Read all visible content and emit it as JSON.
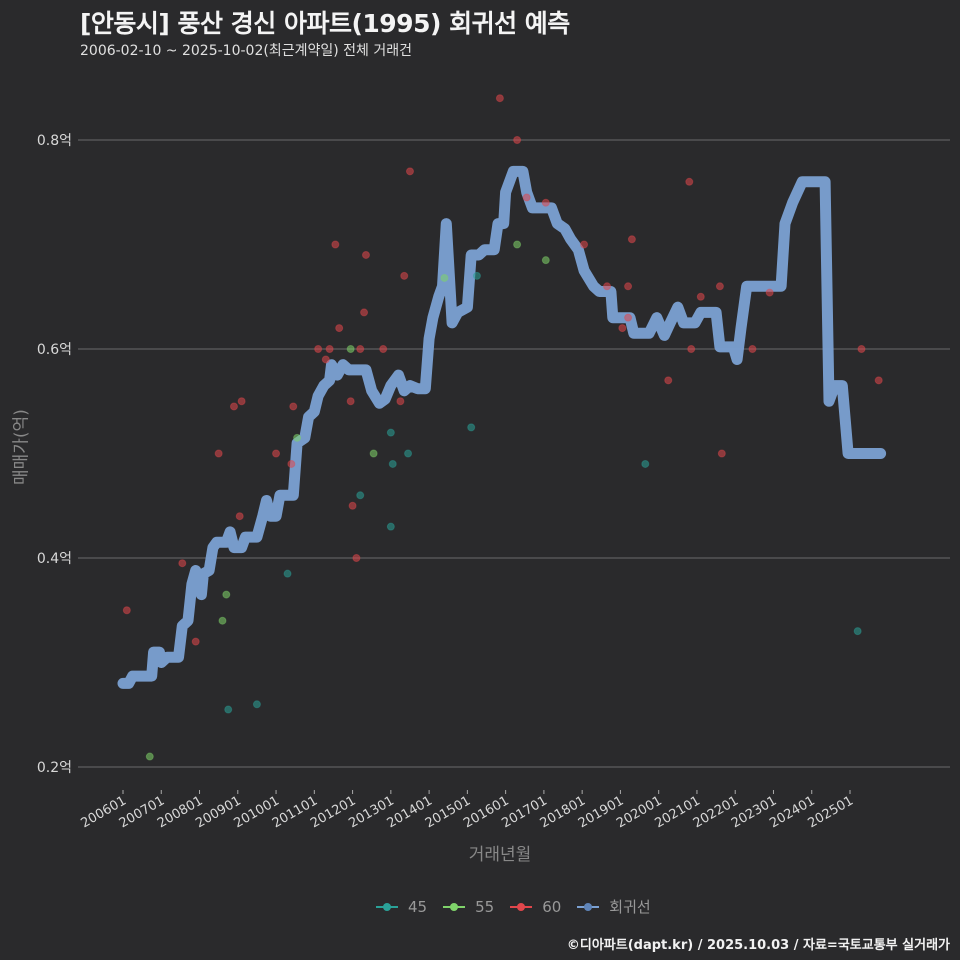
{
  "header": {
    "title": "[안동시] 풍산 경신 아파트(1995) 회귀선 예측",
    "subtitle": "2006-02-10 ~ 2025-10-02(최근계약일) 전체 거래건"
  },
  "axes": {
    "ylabel": "매매가(억)",
    "xlabel": "거래년월"
  },
  "legend": {
    "items": [
      {
        "label": "45",
        "color": "#2aa198"
      },
      {
        "label": "55",
        "color": "#7fd36a"
      },
      {
        "label": "60",
        "color": "#e0474c"
      },
      {
        "label": "회귀선",
        "color": "#7ba1d3"
      }
    ]
  },
  "footer": {
    "credit": "©디아파트(dapt.kr) / 2025.10.03 / 자료=국토교통부 실거래가"
  },
  "colors": {
    "background": "#2a2a2c",
    "grid": "#6b6b6b",
    "regression": "#7ba1d3",
    "s45": "#2aa198",
    "s55": "#7fd36a",
    "s60": "#e0474c"
  },
  "chart_data": {
    "type": "scatter",
    "title": "[안동시] 풍산 경신 아파트(1995) 회귀선 예측",
    "subtitle": "2006-02-10 ~ 2025-10-02(최근계약일) 전체 거래건",
    "xlabel": "거래년월",
    "ylabel": "매매가(억)",
    "ylim": [
      0.18,
      0.86
    ],
    "yticks": [
      0.2,
      0.4,
      0.6,
      0.8
    ],
    "ytick_labels": [
      "0.2억",
      "0.4억",
      "0.6억",
      "0.8억"
    ],
    "xticks": [
      "200601",
      "200701",
      "200801",
      "200901",
      "201001",
      "201101",
      "201201",
      "201301",
      "201401",
      "201501",
      "201601",
      "201701",
      "201801",
      "201901",
      "202001",
      "202101",
      "202201",
      "202301",
      "202401",
      "202501"
    ],
    "grid": true,
    "legend_position": "bottom",
    "series": [
      {
        "name": "45",
        "type": "scatter",
        "points": [
          [
            2008.75,
            0.255
          ],
          [
            2009.5,
            0.26
          ],
          [
            2010.3,
            0.385
          ],
          [
            2012.2,
            0.46
          ],
          [
            2013.0,
            0.43
          ],
          [
            2013.0,
            0.52
          ],
          [
            2013.05,
            0.49
          ],
          [
            2013.45,
            0.5
          ],
          [
            2015.1,
            0.525
          ],
          [
            2015.25,
            0.67
          ],
          [
            2019.65,
            0.49
          ],
          [
            2025.2,
            0.33
          ]
        ]
      },
      {
        "name": "55",
        "type": "scatter",
        "points": [
          [
            2006.7,
            0.21
          ],
          [
            2008.6,
            0.34
          ],
          [
            2008.7,
            0.365
          ],
          [
            2010.55,
            0.515
          ],
          [
            2011.95,
            0.6
          ],
          [
            2012.55,
            0.5
          ],
          [
            2014.4,
            0.668
          ],
          [
            2016.3,
            0.7
          ],
          [
            2017.05,
            0.685
          ]
        ]
      },
      {
        "name": "60",
        "type": "scatter",
        "points": [
          [
            2006.1,
            0.35
          ],
          [
            2007.55,
            0.395
          ],
          [
            2007.9,
            0.32
          ],
          [
            2008.5,
            0.5
          ],
          [
            2008.9,
            0.545
          ],
          [
            2009.05,
            0.44
          ],
          [
            2009.1,
            0.55
          ],
          [
            2010.0,
            0.5
          ],
          [
            2010.4,
            0.49
          ],
          [
            2010.45,
            0.545
          ],
          [
            2011.1,
            0.6
          ],
          [
            2011.3,
            0.59
          ],
          [
            2011.4,
            0.6
          ],
          [
            2011.55,
            0.7
          ],
          [
            2011.65,
            0.62
          ],
          [
            2011.95,
            0.55
          ],
          [
            2012.0,
            0.45
          ],
          [
            2012.1,
            0.4
          ],
          [
            2012.2,
            0.6
          ],
          [
            2012.3,
            0.635
          ],
          [
            2012.35,
            0.69
          ],
          [
            2012.8,
            0.6
          ],
          [
            2013.25,
            0.55
          ],
          [
            2013.35,
            0.67
          ],
          [
            2013.5,
            0.77
          ],
          [
            2015.85,
            0.84
          ],
          [
            2016.3,
            0.8
          ],
          [
            2016.55,
            0.745
          ],
          [
            2017.05,
            0.74
          ],
          [
            2018.05,
            0.7
          ],
          [
            2018.65,
            0.66
          ],
          [
            2019.05,
            0.62
          ],
          [
            2019.3,
            0.705
          ],
          [
            2019.2,
            0.66
          ],
          [
            2019.2,
            0.63
          ],
          [
            2020.25,
            0.57
          ],
          [
            2020.8,
            0.76
          ],
          [
            2020.85,
            0.6
          ],
          [
            2021.1,
            0.65
          ],
          [
            2021.6,
            0.66
          ],
          [
            2021.65,
            0.5
          ],
          [
            2022.45,
            0.6
          ],
          [
            2022.9,
            0.654
          ],
          [
            2025.3,
            0.6
          ],
          [
            2025.75,
            0.57
          ]
        ]
      },
      {
        "name": "회귀선",
        "type": "line",
        "points": [
          [
            2006.0,
            0.28
          ],
          [
            2006.15,
            0.28
          ],
          [
            2006.25,
            0.287
          ],
          [
            2006.75,
            0.287
          ],
          [
            2006.8,
            0.31
          ],
          [
            2006.95,
            0.31
          ],
          [
            2007.0,
            0.3
          ],
          [
            2007.15,
            0.305
          ],
          [
            2007.45,
            0.305
          ],
          [
            2007.55,
            0.335
          ],
          [
            2007.7,
            0.34
          ],
          [
            2007.8,
            0.375
          ],
          [
            2007.9,
            0.388
          ],
          [
            2008.05,
            0.365
          ],
          [
            2008.1,
            0.385
          ],
          [
            2008.25,
            0.388
          ],
          [
            2008.35,
            0.41
          ],
          [
            2008.45,
            0.415
          ],
          [
            2008.7,
            0.415
          ],
          [
            2008.8,
            0.425
          ],
          [
            2008.9,
            0.41
          ],
          [
            2009.1,
            0.41
          ],
          [
            2009.2,
            0.42
          ],
          [
            2009.5,
            0.42
          ],
          [
            2009.65,
            0.44
          ],
          [
            2009.75,
            0.455
          ],
          [
            2009.85,
            0.44
          ],
          [
            2010.0,
            0.44
          ],
          [
            2010.1,
            0.46
          ],
          [
            2010.45,
            0.46
          ],
          [
            2010.55,
            0.51
          ],
          [
            2010.75,
            0.515
          ],
          [
            2010.85,
            0.535
          ],
          [
            2011.0,
            0.54
          ],
          [
            2011.1,
            0.555
          ],
          [
            2011.25,
            0.565
          ],
          [
            2011.4,
            0.57
          ],
          [
            2011.45,
            0.585
          ],
          [
            2011.6,
            0.575
          ],
          [
            2011.75,
            0.585
          ],
          [
            2011.9,
            0.58
          ],
          [
            2012.35,
            0.58
          ],
          [
            2012.5,
            0.56
          ],
          [
            2012.7,
            0.548
          ],
          [
            2012.85,
            0.552
          ],
          [
            2013.0,
            0.565
          ],
          [
            2013.2,
            0.575
          ],
          [
            2013.35,
            0.56
          ],
          [
            2013.5,
            0.565
          ],
          [
            2013.7,
            0.562
          ],
          [
            2013.9,
            0.562
          ],
          [
            2014.0,
            0.61
          ],
          [
            2014.1,
            0.63
          ],
          [
            2014.25,
            0.65
          ],
          [
            2014.35,
            0.66
          ],
          [
            2014.45,
            0.72
          ],
          [
            2014.6,
            0.625
          ],
          [
            2014.75,
            0.635
          ],
          [
            2015.0,
            0.64
          ],
          [
            2015.1,
            0.69
          ],
          [
            2015.3,
            0.69
          ],
          [
            2015.45,
            0.695
          ],
          [
            2015.7,
            0.695
          ],
          [
            2015.8,
            0.72
          ],
          [
            2015.95,
            0.72
          ],
          [
            2016.0,
            0.75
          ],
          [
            2016.2,
            0.77
          ],
          [
            2016.45,
            0.77
          ],
          [
            2016.55,
            0.75
          ],
          [
            2016.7,
            0.735
          ],
          [
            2017.2,
            0.735
          ],
          [
            2017.35,
            0.72
          ],
          [
            2017.55,
            0.715
          ],
          [
            2017.7,
            0.705
          ],
          [
            2017.9,
            0.695
          ],
          [
            2018.05,
            0.675
          ],
          [
            2018.3,
            0.66
          ],
          [
            2018.45,
            0.655
          ],
          [
            2018.75,
            0.655
          ],
          [
            2018.8,
            0.63
          ],
          [
            2019.25,
            0.63
          ],
          [
            2019.35,
            0.615
          ],
          [
            2019.75,
            0.615
          ],
          [
            2019.95,
            0.63
          ],
          [
            2020.15,
            0.613
          ],
          [
            2020.3,
            0.625
          ],
          [
            2020.5,
            0.64
          ],
          [
            2020.65,
            0.625
          ],
          [
            2020.95,
            0.625
          ],
          [
            2021.1,
            0.635
          ],
          [
            2021.5,
            0.635
          ],
          [
            2021.6,
            0.602
          ],
          [
            2021.95,
            0.602
          ],
          [
            2022.05,
            0.59
          ],
          [
            2022.15,
            0.62
          ],
          [
            2022.3,
            0.66
          ],
          [
            2022.95,
            0.66
          ],
          [
            2023.2,
            0.66
          ],
          [
            2023.3,
            0.72
          ],
          [
            2023.5,
            0.74
          ],
          [
            2023.75,
            0.76
          ],
          [
            2024.35,
            0.76
          ],
          [
            2024.45,
            0.55
          ],
          [
            2024.6,
            0.565
          ],
          [
            2024.8,
            0.565
          ],
          [
            2024.95,
            0.5
          ],
          [
            2025.8,
            0.5
          ]
        ]
      }
    ]
  }
}
